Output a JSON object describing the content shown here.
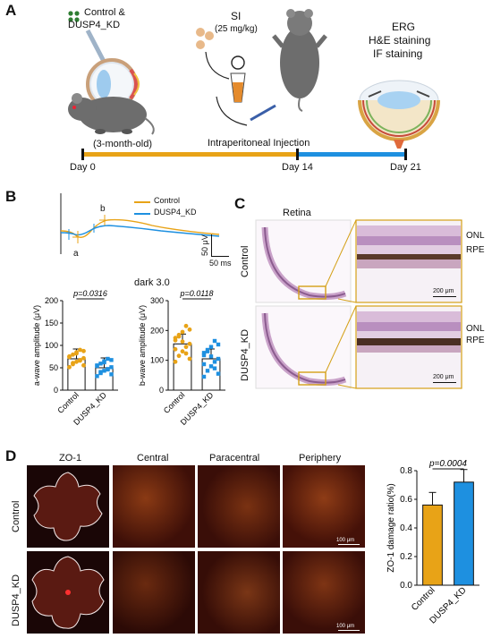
{
  "panelA": {
    "letter": "A",
    "groups_label_1": "Control &",
    "groups_label_2": "DUSP4_KD",
    "si_label": "SI",
    "dose_label": "(25 mg/kg)",
    "assays": [
      "ERG",
      "H&E staining",
      "IF staining"
    ],
    "age_label": "(3-month-old)",
    "injection_label": "Intraperitoneal Injection",
    "timeline": [
      "Day 0",
      "Day 14",
      "Day 21"
    ],
    "colors": {
      "orange": "#E8A317",
      "blue": "#1E90E0"
    }
  },
  "panelB": {
    "letter": "B",
    "trace_peak_labels": [
      "a",
      "b"
    ],
    "legend": [
      "Control",
      "DUSP4_KD"
    ],
    "scale_y": "50 μV",
    "scale_x": "50 ms",
    "condition_title": "dark 3.0",
    "charts": [
      {
        "ylabel": "a-wave amplitude (μV)",
        "pvalue": "p=0.0316",
        "categories": [
          "Control",
          "DUSP4_KD"
        ],
        "yticks": [
          "0",
          "50",
          "100",
          "150",
          "200"
        ],
        "ylim": [
          0,
          200
        ],
        "values": [
          70,
          50
        ]
      },
      {
        "ylabel": "b-wave amplitude (μV)",
        "pvalue": "p=0.0118",
        "categories": [
          "Control",
          "DUSP4_KD"
        ],
        "yticks": [
          "0",
          "100",
          "200",
          "300"
        ],
        "ylim": [
          0,
          300
        ],
        "values": [
          155,
          105
        ]
      }
    ]
  },
  "panelC": {
    "letter": "C",
    "title": "Retina",
    "rows": [
      "Control",
      "DUSP4_KD"
    ],
    "layers": [
      "ONL",
      "RPE"
    ],
    "scalebar": "200 μm"
  },
  "panelD": {
    "letter": "D",
    "columns": [
      "ZO-1",
      "Central",
      "Paracentral",
      "Periphery"
    ],
    "rows": [
      "Control",
      "DUSP4_KD"
    ],
    "scalebar": "100 μm",
    "chart": {
      "ylabel": "ZO-1 damage ratio(%)",
      "pvalue": "p=0.0004",
      "categories": [
        "Control",
        "DUSP4_KD"
      ],
      "yticks": [
        "0.0",
        "0.2",
        "0.4",
        "0.6",
        "0.8"
      ],
      "ylim": [
        0,
        0.8
      ],
      "values": [
        0.56,
        0.72
      ]
    }
  },
  "chart_data": [
    {
      "type": "bar",
      "categories": [
        "Control",
        "DUSP4_KD"
      ],
      "values": [
        70,
        50
      ],
      "title": "dark 3.0",
      "xlabel": "",
      "ylabel": "a-wave amplitude (μV)",
      "ylim": [
        0,
        200
      ],
      "annotations": [
        "p=0.0316"
      ]
    },
    {
      "type": "bar",
      "categories": [
        "Control",
        "DUSP4_KD"
      ],
      "values": [
        155,
        105
      ],
      "title": "dark 3.0",
      "xlabel": "",
      "ylabel": "b-wave amplitude (μV)",
      "ylim": [
        0,
        300
      ],
      "annotations": [
        "p=0.0118"
      ]
    },
    {
      "type": "bar",
      "categories": [
        "Control",
        "DUSP4_KD"
      ],
      "values": [
        0.56,
        0.72
      ],
      "title": "",
      "xlabel": "",
      "ylabel": "ZO-1 damage ratio(%)",
      "ylim": [
        0,
        0.8
      ],
      "annotations": [
        "p=0.0004"
      ]
    }
  ]
}
